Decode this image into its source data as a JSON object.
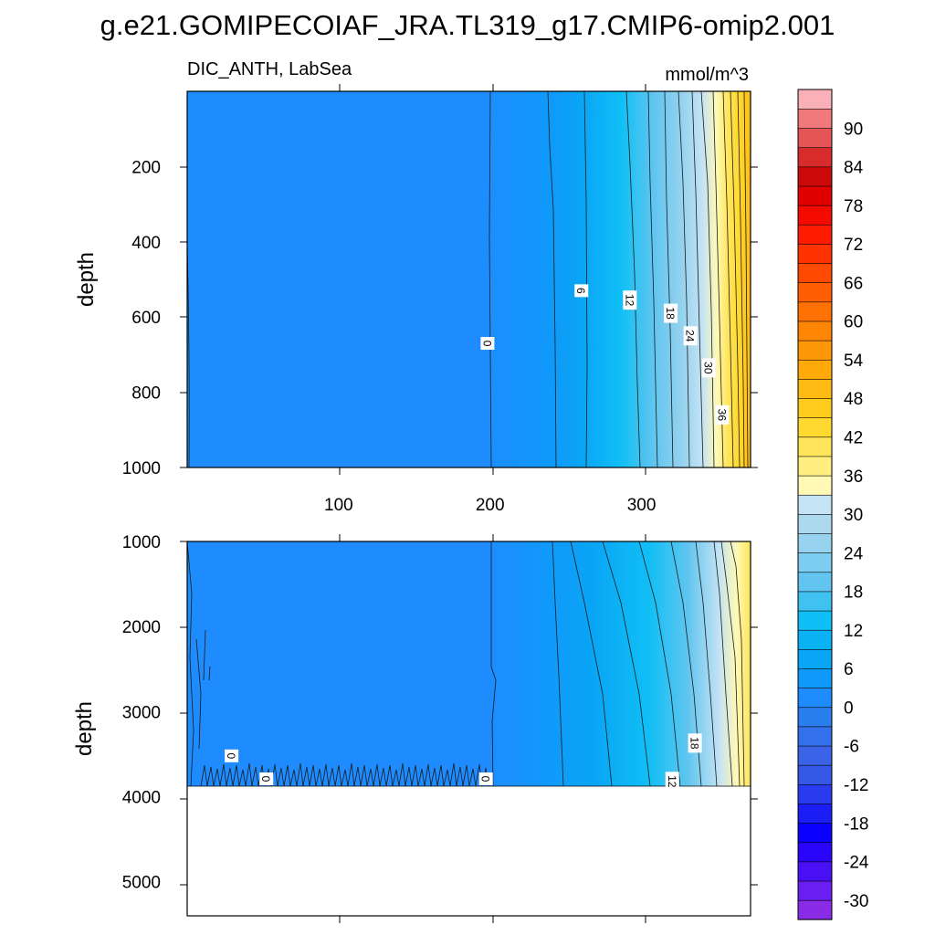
{
  "chart_data": {
    "type": "contour",
    "title": "g.e21.GOMIPECOIAF_JRA.TL319_g17.CMIP6-omip2.001",
    "subtitle_left": "DIC_ANTH, LabSea",
    "units": "mmol/m^3",
    "x_ticks": [
      100,
      200,
      300
    ],
    "x_range": [
      0,
      372
    ],
    "panels": [
      {
        "name": "upper",
        "ylabel": "depth",
        "ylim": [
          0,
          1000
        ],
        "y_ticks": [
          200,
          400,
          600,
          800,
          1000
        ],
        "ocean_bottom": 1000,
        "contour_labels": [
          {
            "text": "0",
            "x": 198,
            "depth": 670
          },
          {
            "text": "6",
            "x": 260,
            "depth": 530
          },
          {
            "text": "12",
            "x": 292,
            "depth": 555
          },
          {
            "text": "18",
            "x": 319,
            "depth": 590
          },
          {
            "text": "24",
            "x": 332,
            "depth": 650
          },
          {
            "text": "30",
            "x": 344,
            "depth": 735
          },
          {
            "text": "36",
            "x": 353,
            "depth": 860
          }
        ]
      },
      {
        "name": "lower",
        "ylabel": "depth",
        "ylim": [
          1000,
          5400
        ],
        "y_ticks": [
          1000,
          2000,
          3000,
          4000,
          5000
        ],
        "ocean_bottom": 3880,
        "contour_labels": [
          {
            "text": "0",
            "x": 29,
            "depth": 3520
          },
          {
            "text": "0",
            "x": 52,
            "depth": 3790
          },
          {
            "text": "0",
            "x": 197,
            "depth": 3790
          },
          {
            "text": "18",
            "x": 335,
            "depth": 3370
          },
          {
            "text": "12",
            "x": 320,
            "depth": 3820
          }
        ]
      }
    ],
    "colorbar": {
      "levels": [
        -33,
        -30,
        -27,
        -24,
        -21,
        -18,
        -15,
        -12,
        -9,
        -6,
        -3,
        0,
        3,
        6,
        9,
        12,
        15,
        18,
        21,
        24,
        27,
        30,
        33,
        36,
        39,
        42,
        45,
        48,
        51,
        54,
        57,
        60,
        63,
        66,
        69,
        72,
        75,
        78,
        81,
        84,
        87,
        90,
        93
      ],
      "tick_labels": [
        "-30",
        "-24",
        "-18",
        "-12",
        "-6",
        "0",
        "6",
        "12",
        "18",
        "24",
        "30",
        "36",
        "42",
        "48",
        "54",
        "60",
        "66",
        "72",
        "78",
        "84",
        "90"
      ],
      "colors": [
        "#8a2be8",
        "#6a1ef0",
        "#4a10f5",
        "#2a05fa",
        "#0a00ff",
        "#1a1ef5",
        "#2a3bef",
        "#3558e6",
        "#3a63e8",
        "#3370eb",
        "#2a7fee",
        "#1e8cff",
        "#0f99fa",
        "#0aa5f5",
        "#0bb2f3",
        "#10bff5",
        "#40c2f0",
        "#62c5ef",
        "#7ccdef",
        "#97d3ee",
        "#add9ef",
        "#c4e3f4",
        "#fff9b5",
        "#ffef80",
        "#ffe55a",
        "#ffd92f",
        "#ffcc1e",
        "#ffbb14",
        "#ffaa0a",
        "#ff9808",
        "#ff8605",
        "#ff7203",
        "#ff5e02",
        "#ff4a00",
        "#ff3300",
        "#ff1b00",
        "#f50a00",
        "#e00000",
        "#cd0a0a",
        "#d82c2c",
        "#e55555",
        "#f07a7a",
        "#f9b0b8"
      ]
    }
  }
}
